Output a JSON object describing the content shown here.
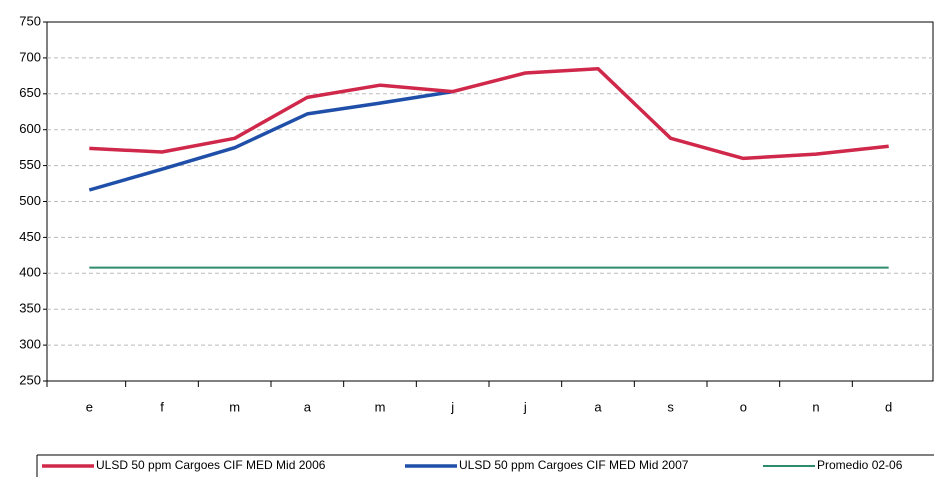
{
  "chart_data": {
    "type": "line",
    "categories": [
      "e",
      "f",
      "m",
      "a",
      "m",
      "j",
      "j",
      "a",
      "s",
      "o",
      "n",
      "d"
    ],
    "series": [
      {
        "name": "ULSD 50 ppm Cargoes CIF MED Mid 2006",
        "color": "#d0284a",
        "values": [
          574,
          569,
          588,
          645,
          662,
          653,
          679,
          685,
          588,
          560,
          566,
          577
        ]
      },
      {
        "name": "ULSD 50 ppm Cargoes CIF MED Mid 2007",
        "color": "#1f4fa8",
        "values": [
          516,
          545,
          575,
          622,
          637,
          653,
          null,
          null,
          null,
          null,
          null,
          null
        ]
      },
      {
        "name": "Promedio 02-06",
        "color": "#2e8b6e",
        "values": [
          408,
          408,
          408,
          408,
          408,
          408,
          408,
          408,
          408,
          408,
          408,
          408
        ]
      }
    ],
    "ylim": [
      250,
      750
    ],
    "yticks": [
      250,
      300,
      350,
      400,
      450,
      500,
      550,
      600,
      650,
      700,
      750
    ],
    "grid": true,
    "legend": "bottom"
  }
}
